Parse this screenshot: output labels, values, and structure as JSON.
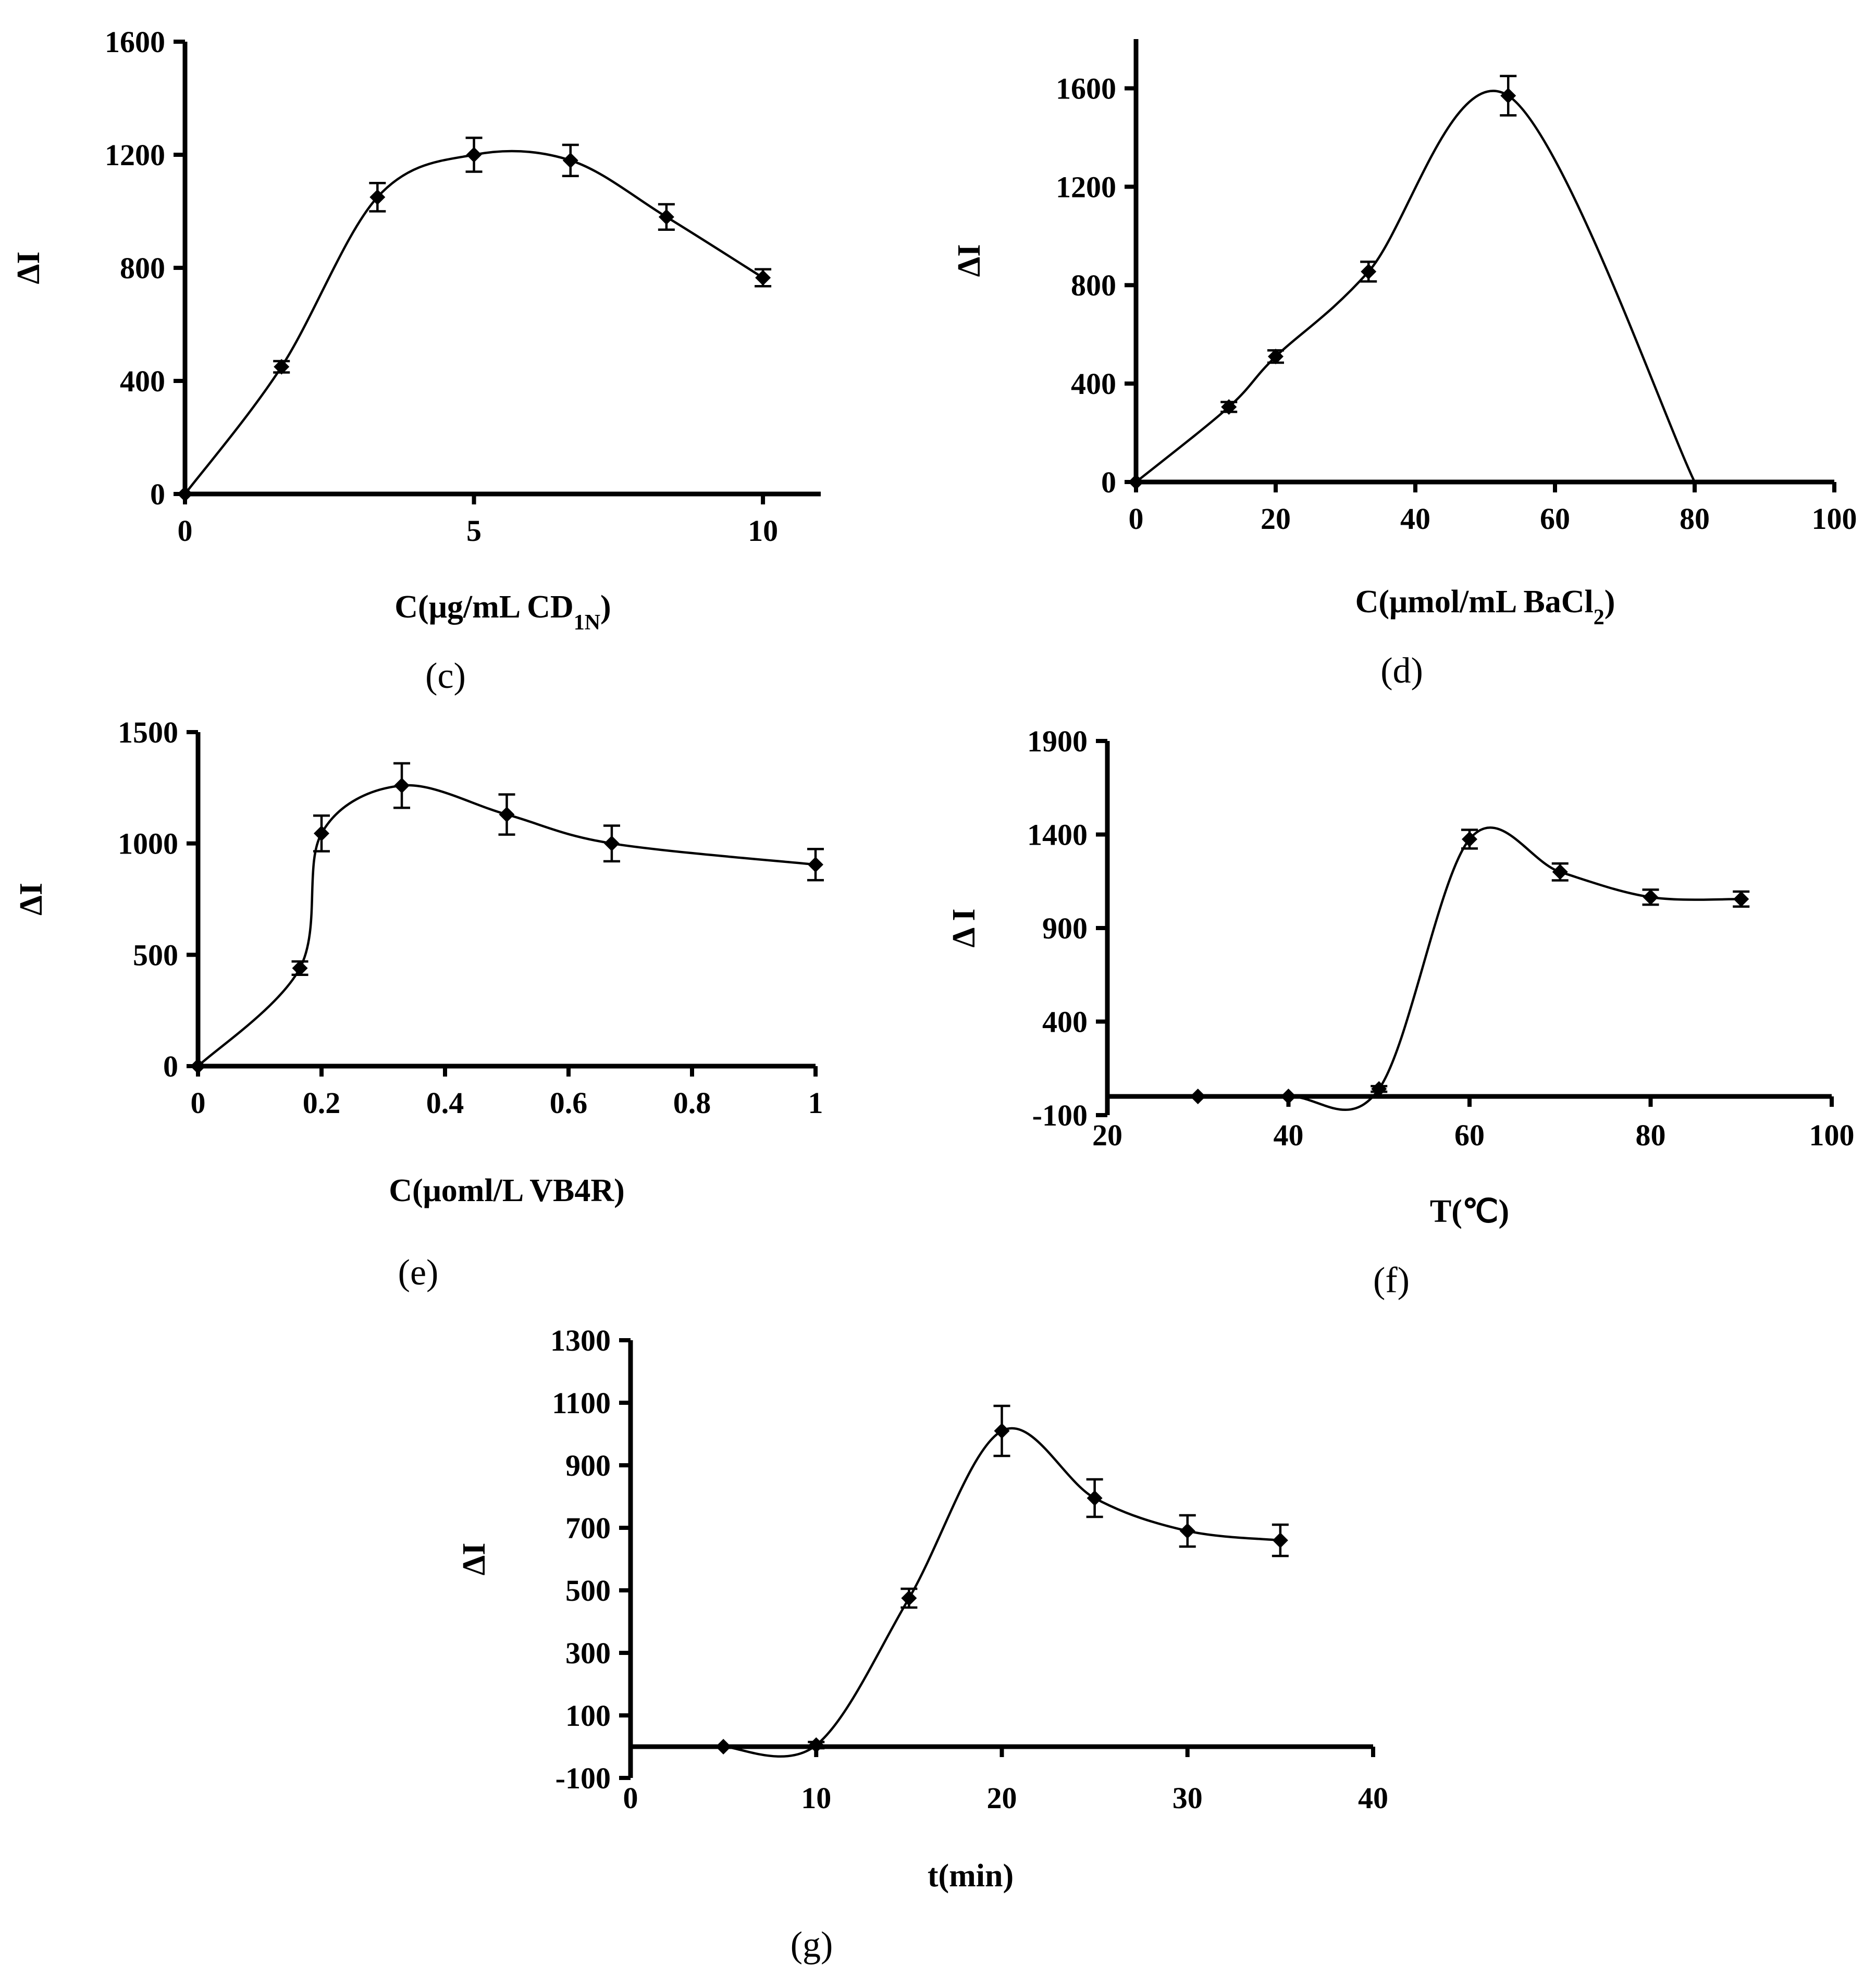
{
  "chart_data": [
    {
      "id": "c",
      "type": "line",
      "title": "",
      "panel_label": "(c)",
      "xlabel": "C(μg/mL CD",
      "xlabel_sub": "1N",
      "xlabel_tail": ")",
      "ylabel": "ΔI",
      "xlim": [
        0,
        11
      ],
      "ylim": [
        0,
        1600
      ],
      "xticks": [
        0,
        5,
        10
      ],
      "yticks": [
        0,
        400,
        800,
        1200,
        1600
      ],
      "x": [
        0,
        1.67,
        3.33,
        5.0,
        6.67,
        8.33,
        10.0
      ],
      "y": [
        0,
        450,
        1050,
        1200,
        1180,
        980,
        765
      ],
      "err": [
        0,
        20,
        50,
        60,
        55,
        45,
        30
      ]
    },
    {
      "id": "d",
      "type": "line",
      "title": "",
      "panel_label": "(d)",
      "xlabel": "C(μmol/mL BaCl",
      "xlabel_sub": "2",
      "xlabel_tail": ")",
      "ylabel": "ΔI",
      "xlim": [
        0,
        100
      ],
      "ylim": [
        0,
        1800
      ],
      "xticks": [
        0,
        20,
        40,
        60,
        80,
        100
      ],
      "yticks": [
        0,
        400,
        800,
        1200,
        1600
      ],
      "x": [
        0,
        13.3,
        20,
        33.3,
        53.3
      ],
      "y": [
        0,
        305,
        510,
        855,
        1570
      ],
      "err": [
        0,
        20,
        25,
        40,
        80
      ],
      "curve_extension": [
        [
          80,
          0
        ]
      ]
    },
    {
      "id": "e",
      "type": "line",
      "title": "",
      "panel_label": "(e)",
      "xlabel": "C(μoml/L VB4R)",
      "xlabel_sub": "",
      "xlabel_tail": "",
      "ylabel": "ΔI",
      "xlim": [
        0,
        1
      ],
      "ylim": [
        0,
        1500
      ],
      "xticks": [
        0,
        0.2,
        0.4,
        0.6,
        0.8,
        1
      ],
      "xtick_labels": [
        "0",
        "0.2",
        "0.4",
        "0.6",
        "0.8",
        "1"
      ],
      "yticks": [
        0,
        500,
        1000,
        1500
      ],
      "x": [
        0,
        0.165,
        0.2,
        0.33,
        0.5,
        0.67,
        1.0
      ],
      "y": [
        0,
        440,
        1045,
        1260,
        1130,
        1000,
        905
      ],
      "err": [
        0,
        30,
        80,
        100,
        90,
        80,
        70
      ]
    },
    {
      "id": "f",
      "type": "line",
      "title": "",
      "panel_label": "(f)",
      "xlabel": "T(℃)",
      "xlabel_sub": "",
      "xlabel_tail": "",
      "ylabel": "Δ I",
      "xlim": [
        20,
        100
      ],
      "ylim": [
        -100,
        1900
      ],
      "xticks": [
        20,
        40,
        60,
        80,
        100
      ],
      "yticks": [
        -100,
        400,
        900,
        1400,
        1900
      ],
      "baseline_y": 0,
      "x": [
        30,
        40,
        50,
        60,
        70,
        80,
        90
      ],
      "y": [
        0,
        0,
        40,
        1375,
        1200,
        1065,
        1055
      ],
      "err": [
        0,
        0,
        15,
        50,
        45,
        40,
        40
      ]
    },
    {
      "id": "g",
      "type": "line",
      "title": "",
      "panel_label": "(g)",
      "xlabel": "t(min)",
      "xlabel_sub": "",
      "xlabel_tail": "",
      "ylabel": "ΔI",
      "xlim": [
        0,
        40
      ],
      "ylim": [
        -100,
        1300
      ],
      "xticks": [
        0,
        10,
        20,
        30,
        40
      ],
      "yticks": [
        -100,
        100,
        300,
        500,
        700,
        900,
        1100,
        1300
      ],
      "baseline_y": 0,
      "x": [
        5,
        10,
        15,
        20,
        25,
        30,
        35
      ],
      "y": [
        0,
        5,
        475,
        1010,
        795,
        690,
        660
      ],
      "err": [
        0,
        10,
        30,
        80,
        60,
        50,
        50
      ]
    }
  ]
}
